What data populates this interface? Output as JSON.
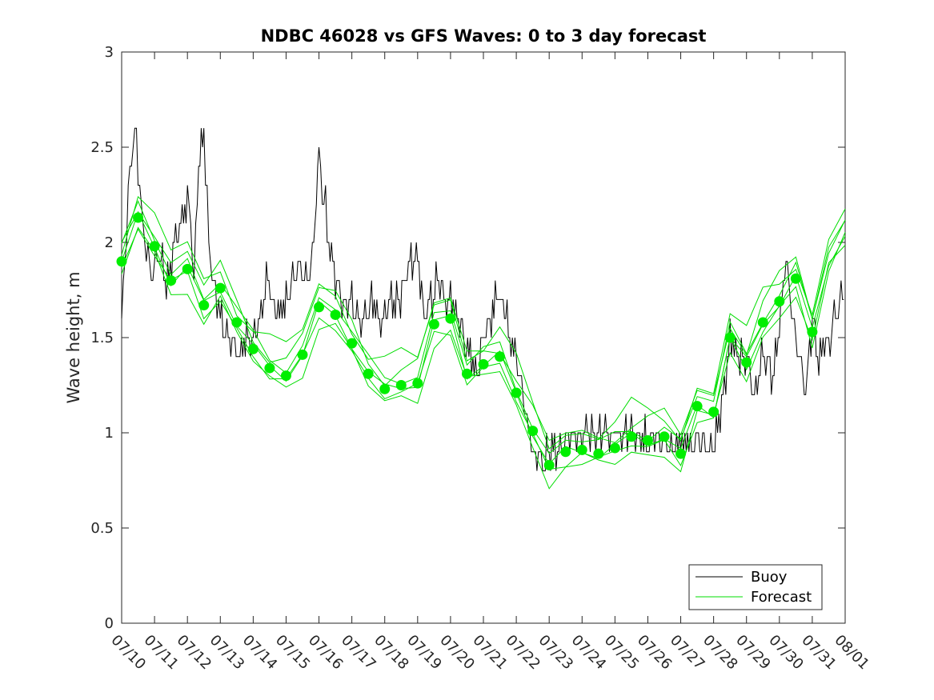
{
  "chart_data": {
    "type": "line",
    "title": "NDBC 46028 vs GFS Waves: 0 to 3 day forecast",
    "xlabel": "",
    "ylabel": "Wave height, m",
    "ylim": [
      0,
      3
    ],
    "yticks": [
      0,
      0.5,
      1,
      1.5,
      2,
      2.5,
      3
    ],
    "xlim": [
      "07/10",
      "08/01"
    ],
    "xticks": [
      "07/10",
      "07/11",
      "07/12",
      "07/13",
      "07/14",
      "07/15",
      "07/16",
      "07/17",
      "07/18",
      "07/19",
      "07/20",
      "07/21",
      "07/22",
      "07/23",
      "07/24",
      "07/25",
      "07/26",
      "07/27",
      "07/28",
      "07/29",
      "07/30",
      "07/31",
      "08/01"
    ],
    "grid": false,
    "legend_position": "bottom-right",
    "legend": [
      {
        "label": "Buoy",
        "color": "#000000"
      },
      {
        "label": "Forecast",
        "color": "#00dd00"
      }
    ],
    "colors": {
      "buoy": "#000000",
      "forecast": "#00dd00",
      "forecast_marker": "#00ee00"
    },
    "series": [
      {
        "name": "Buoy",
        "x": [
          0.0,
          0.1,
          0.2,
          0.3,
          0.4,
          0.5,
          0.6,
          0.7,
          0.8,
          0.9,
          1.0,
          1.2,
          1.4,
          1.6,
          1.8,
          2.0,
          2.1,
          2.2,
          2.3,
          2.5,
          2.6,
          2.7,
          2.8,
          2.9,
          3.0,
          3.2,
          3.4,
          3.6,
          3.8,
          4.0,
          4.2,
          4.4,
          4.6,
          4.8,
          5.0,
          5.2,
          5.4,
          5.6,
          5.8,
          6.0,
          6.1,
          6.2,
          6.3,
          6.5,
          6.7,
          7.0,
          7.2,
          7.4,
          7.6,
          7.8,
          8.0,
          8.2,
          8.4,
          8.6,
          8.8,
          9.0,
          9.2,
          9.4,
          9.6,
          9.8,
          10.0,
          10.2,
          10.4,
          10.6,
          10.8,
          11.0,
          11.2,
          11.4,
          11.6,
          11.8,
          12.0,
          12.2,
          12.5,
          12.8,
          13.0,
          13.5,
          14.0,
          14.5,
          15.0,
          15.5,
          16.0,
          16.5,
          17.0,
          17.5,
          18.0,
          18.2,
          18.5,
          18.8,
          19.0,
          19.2,
          19.5,
          19.8,
          20.0,
          20.2,
          20.5,
          20.8,
          21.0,
          21.2,
          21.5,
          22.0
        ],
        "y": [
          1.6,
          1.9,
          2.3,
          2.4,
          2.6,
          2.4,
          2.2,
          2.0,
          1.9,
          1.8,
          1.9,
          1.9,
          1.8,
          2.0,
          2.1,
          2.2,
          2.1,
          1.8,
          2.3,
          2.6,
          2.2,
          1.9,
          1.8,
          1.7,
          1.6,
          1.5,
          1.5,
          1.4,
          1.5,
          1.5,
          1.6,
          1.8,
          1.7,
          1.6,
          1.7,
          1.8,
          1.9,
          1.8,
          1.9,
          2.5,
          2.3,
          2.2,
          2.0,
          1.8,
          1.7,
          1.7,
          1.6,
          1.6,
          1.7,
          1.6,
          1.6,
          1.7,
          1.7,
          1.8,
          1.9,
          1.9,
          1.6,
          1.7,
          1.8,
          1.7,
          1.7,
          1.6,
          1.5,
          1.4,
          1.3,
          1.5,
          1.6,
          1.7,
          1.7,
          1.5,
          1.4,
          1.2,
          0.9,
          0.85,
          0.9,
          0.95,
          1.0,
          1.0,
          1.0,
          1.0,
          0.95,
          0.95,
          0.95,
          0.95,
          0.9,
          1.1,
          1.5,
          1.4,
          1.4,
          1.2,
          1.4,
          1.3,
          1.6,
          1.9,
          1.5,
          1.2,
          1.6,
          1.4,
          1.5,
          1.8
        ]
      },
      {
        "name": "Forecast",
        "x": [
          0.0,
          0.5,
          1.0,
          1.5,
          2.0,
          2.5,
          3.0,
          3.5,
          4.0,
          4.5,
          5.0,
          5.5,
          6.0,
          6.5,
          7.0,
          7.5,
          8.0,
          8.5,
          9.0,
          9.5,
          10.0,
          10.5,
          11.0,
          11.5,
          12.0,
          12.5,
          13.0,
          13.5,
          14.0,
          14.5,
          15.0,
          15.5,
          16.0,
          16.5,
          17.0,
          17.5,
          18.0,
          18.5,
          19.0,
          19.5,
          20.0,
          20.5,
          21.0,
          21.5,
          22.0
        ],
        "y": [
          1.9,
          2.13,
          1.98,
          1.8,
          1.86,
          1.67,
          1.76,
          1.58,
          1.44,
          1.34,
          1.3,
          1.41,
          1.66,
          1.62,
          1.47,
          1.31,
          1.23,
          1.25,
          1.26,
          1.57,
          1.6,
          1.31,
          1.36,
          1.4,
          1.21,
          1.01,
          0.83,
          0.9,
          0.91,
          0.89,
          0.92,
          0.98,
          0.96,
          0.98,
          0.89,
          1.14,
          1.11,
          1.5,
          1.37,
          1.58,
          1.69,
          1.81,
          1.53,
          1.9,
          2.05
        ]
      }
    ],
    "forecast_markers": {
      "x": [
        0.0,
        0.5,
        1.0,
        1.5,
        2.0,
        2.5,
        3.0,
        3.5,
        4.0,
        4.5,
        5.0,
        5.5,
        6.0,
        6.5,
        7.0,
        7.5,
        8.0,
        8.5,
        9.0,
        9.5,
        10.0,
        10.5,
        11.0,
        11.5,
        12.0,
        12.5,
        13.0,
        13.5,
        14.0,
        14.5,
        15.0,
        15.5,
        16.0,
        16.5,
        17.0,
        17.5,
        18.0,
        18.5,
        19.0,
        19.5,
        20.0,
        20.5,
        21.0
      ],
      "y": [
        1.9,
        2.13,
        1.98,
        1.8,
        1.86,
        1.67,
        1.76,
        1.58,
        1.44,
        1.34,
        1.3,
        1.41,
        1.66,
        1.62,
        1.47,
        1.31,
        1.23,
        1.25,
        1.26,
        1.57,
        1.6,
        1.31,
        1.36,
        1.4,
        1.21,
        1.01,
        0.83,
        0.9,
        0.91,
        0.89,
        0.92,
        0.98,
        0.96,
        0.98,
        0.89,
        1.14,
        1.11,
        1.5,
        1.37,
        1.58,
        1.69,
        1.81,
        1.53
      ]
    }
  }
}
